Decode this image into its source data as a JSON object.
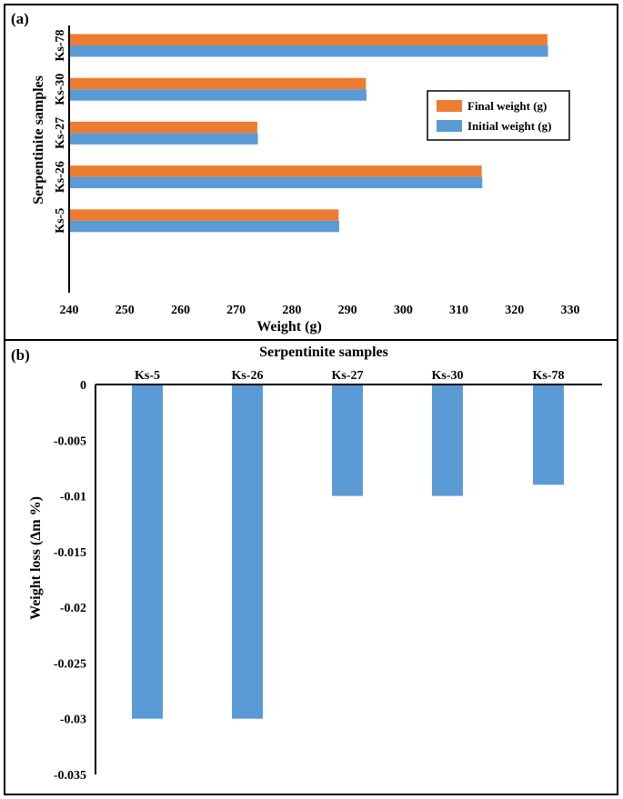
{
  "panels": [
    {
      "label": "(a)"
    },
    {
      "label": "(b)"
    }
  ],
  "chart_data": [
    {
      "type": "bar",
      "orientation": "horizontal",
      "panel": "(a)",
      "categories": [
        "Ks-5",
        "Ks-26",
        "Ks-27",
        "Ks-30",
        "Ks-78"
      ],
      "series": [
        {
          "name": "Final weight (g)",
          "color": "#ed7d31",
          "values": [
            288.4,
            314.1,
            273.8,
            293.3,
            325.9
          ]
        },
        {
          "name": "Initial weight (g)",
          "color": "#5b9bd5",
          "values": [
            288.5,
            314.2,
            273.9,
            293.4,
            326.0
          ]
        }
      ],
      "xlabel": "Weight (g)",
      "ylabel": "Serpentinite samples",
      "xlim": [
        240,
        330
      ],
      "xticks": [
        "240",
        "250",
        "260",
        "270",
        "280",
        "290",
        "300",
        "310",
        "320",
        "330"
      ],
      "legend_position": "right",
      "grid": false
    },
    {
      "type": "bar",
      "panel": "(b)",
      "categories": [
        "Ks-5",
        "Ks-26",
        "Ks-27",
        "Ks-30",
        "Ks-78"
      ],
      "series": [
        {
          "color": "#5b9bd5",
          "values": [
            -0.03,
            -0.03,
            -0.01,
            -0.01,
            -0.009
          ]
        }
      ],
      "xlabel": "Serpentinite samples",
      "ylabel": "Weight loss (Δm %)",
      "ylim": [
        -0.035,
        0
      ],
      "yticks": [
        "0",
        "-0.005",
        "-0.01",
        "-0.015",
        "-0.02",
        "-0.025",
        "-0.03",
        "-0.035"
      ],
      "x_axis_position": "top",
      "grid": false
    }
  ]
}
